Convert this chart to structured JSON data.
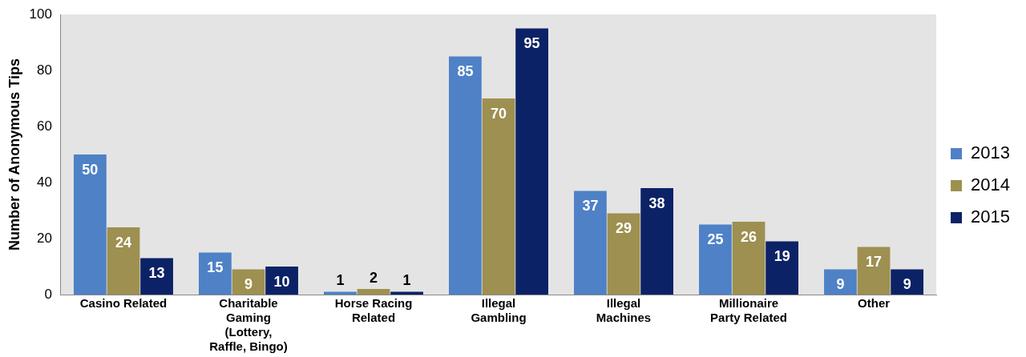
{
  "chart_data": {
    "type": "bar",
    "ylabel": "Number of Anonymous Tips",
    "categories": [
      "Casino Related",
      "Charitable Gaming (Lottery, Raffle, Bingo)",
      "Horse Racing Related",
      "Illegal Gambling",
      "Illegal Machines",
      "Millionaire Party Related",
      "Other"
    ],
    "series": [
      {
        "name": "2013",
        "color": "#4f81c6",
        "values": [
          50,
          15,
          1,
          85,
          37,
          25,
          9
        ]
      },
      {
        "name": "2014",
        "color": "#9d9050",
        "values": [
          24,
          9,
          2,
          70,
          29,
          26,
          17
        ]
      },
      {
        "name": "2015",
        "color": "#0c2266",
        "values": [
          13,
          10,
          1,
          95,
          38,
          19,
          9
        ]
      }
    ],
    "ylim": [
      0,
      100
    ],
    "yticks": [
      0,
      20,
      40,
      60,
      80,
      100
    ],
    "grid": false,
    "legend": "right",
    "data_labels": true
  }
}
